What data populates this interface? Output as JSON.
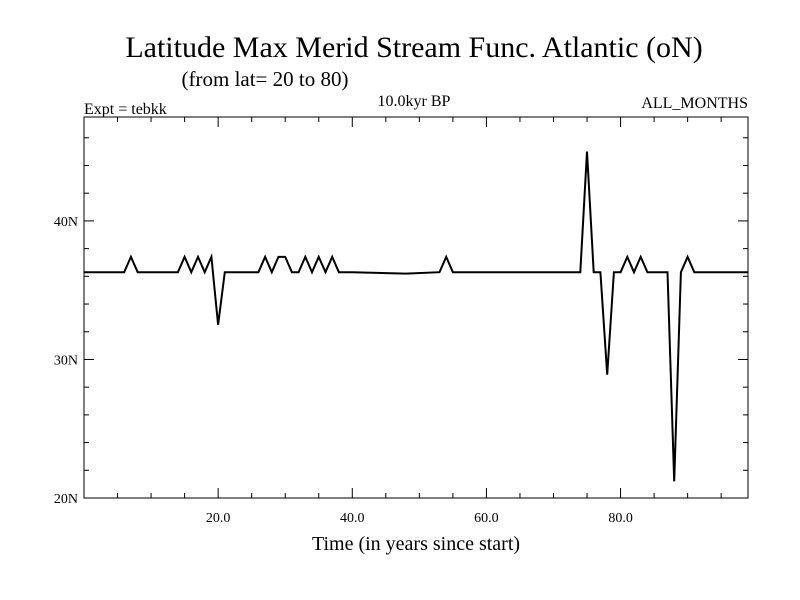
{
  "chart_data": {
    "type": "line",
    "title": "Latitude Max Merid Stream Func. Atlantic (oN)",
    "subtitle": "(from lat= 20 to 80)",
    "experiment": "Expt = tebkk",
    "period": "10.0kyr BP",
    "months": "ALL_MONTHS",
    "xlabel": "Time (in years since start)",
    "ylabel": "",
    "xlim": [
      0,
      99
    ],
    "ylim": [
      20,
      47.5
    ],
    "x_ticks": [
      20,
      40,
      60,
      80
    ],
    "x_tick_labels": [
      "20.0",
      "40.0",
      "60.0",
      "80.0"
    ],
    "y_ticks": [
      20,
      30,
      40
    ],
    "y_tick_labels": [
      "20N",
      "30N",
      "40N"
    ],
    "grid": false,
    "series": [
      {
        "x": [
          0,
          6,
          7,
          8,
          9,
          14,
          15,
          16,
          17,
          18,
          19,
          20,
          21,
          22,
          26,
          27,
          28,
          29,
          30,
          31,
          32,
          33,
          34,
          35,
          36,
          37,
          38,
          39,
          40,
          48,
          53,
          54,
          55,
          56,
          74,
          75,
          76,
          77,
          78,
          79,
          80,
          81,
          82,
          83,
          84,
          85,
          87,
          88,
          89,
          90,
          91,
          99
        ],
        "values": [
          36.3,
          36.3,
          37.4,
          36.3,
          36.3,
          36.3,
          37.4,
          36.3,
          37.4,
          36.3,
          37.4,
          32.5,
          36.3,
          36.3,
          36.3,
          37.4,
          36.3,
          37.4,
          37.4,
          36.3,
          36.3,
          37.4,
          36.3,
          37.4,
          36.3,
          37.4,
          36.3,
          36.3,
          36.3,
          36.2,
          36.3,
          37.4,
          36.3,
          36.3,
          36.3,
          45.0,
          36.3,
          36.3,
          28.9,
          36.3,
          36.3,
          37.4,
          36.3,
          37.4,
          36.3,
          36.3,
          36.3,
          21.2,
          36.3,
          37.4,
          36.3,
          36.3
        ]
      }
    ]
  }
}
